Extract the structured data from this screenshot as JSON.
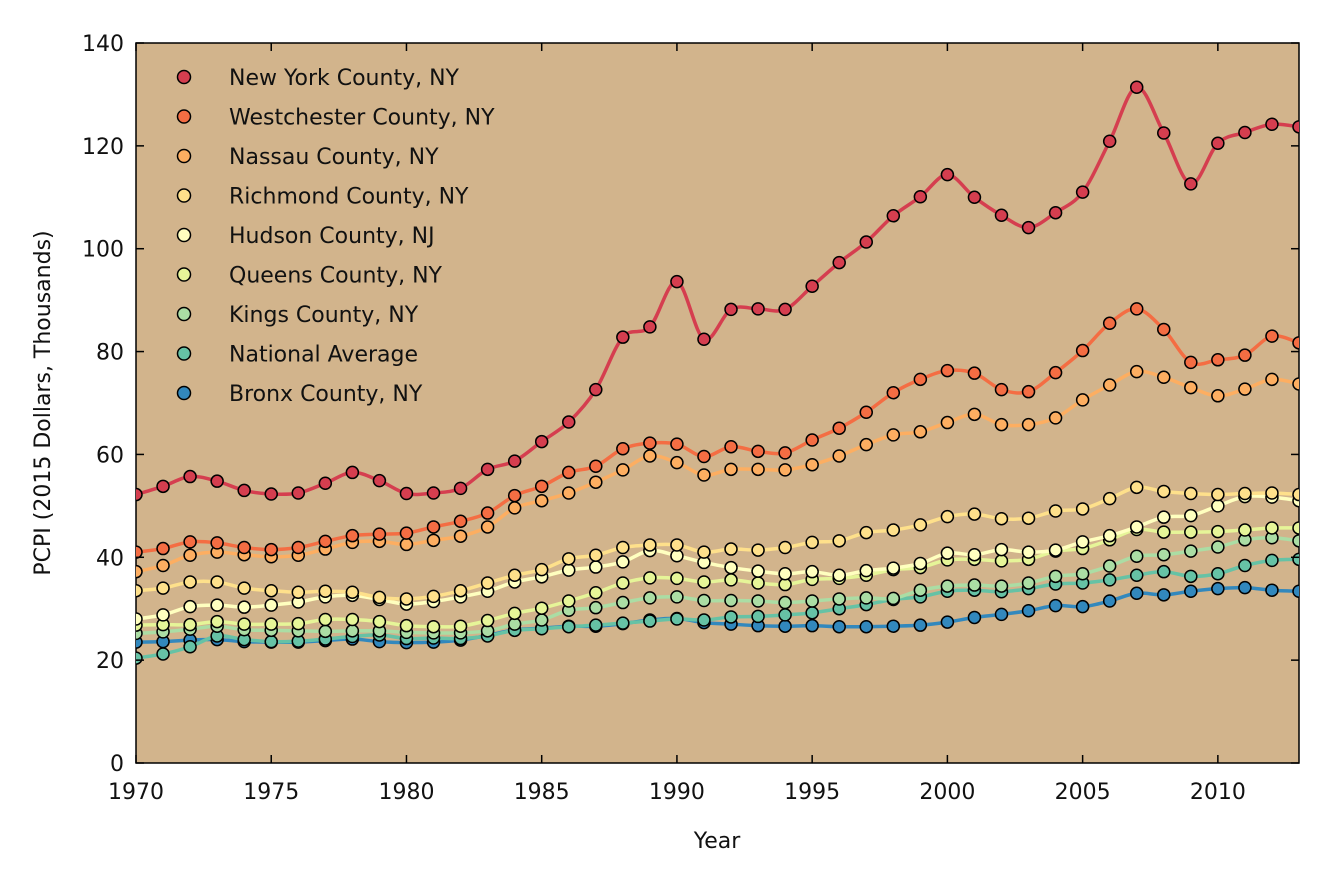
{
  "chart_data": {
    "type": "line",
    "xlabel": "Year",
    "ylabel": "PCPI (2015 Dollars, Thousands)",
    "xlim": [
      1970,
      2013
    ],
    "ylim": [
      0,
      140
    ],
    "x_ticks": [
      1970,
      1975,
      1980,
      1985,
      1990,
      1995,
      2000,
      2005,
      2010
    ],
    "y_ticks": [
      0,
      20,
      40,
      60,
      80,
      100,
      120,
      140
    ],
    "x_tick_labels": [
      "1970",
      "1975",
      "1980",
      "1985",
      "1990",
      "1995",
      "2000",
      "2005",
      "2010"
    ],
    "y_tick_labels": [
      "0",
      "20",
      "40",
      "60",
      "80",
      "100",
      "120",
      "140"
    ],
    "background_color": "#d2b48c",
    "grid": false,
    "legend_position": "top-left",
    "x": [
      1970,
      1971,
      1972,
      1973,
      1974,
      1975,
      1976,
      1977,
      1978,
      1979,
      1980,
      1981,
      1982,
      1983,
      1984,
      1985,
      1986,
      1987,
      1988,
      1989,
      1990,
      1991,
      1992,
      1993,
      1994,
      1995,
      1996,
      1997,
      1998,
      1999,
      2000,
      2001,
      2002,
      2003,
      2004,
      2005,
      2006,
      2007,
      2008,
      2009,
      2010,
      2011,
      2012,
      2013
    ],
    "series": [
      {
        "name": "New York County, NY",
        "color": "#d53e4f",
        "values": [
          52.2,
          53.8,
          55.7,
          54.8,
          53.0,
          52.3,
          52.5,
          54.4,
          56.5,
          54.9,
          52.4,
          52.5,
          53.4,
          57.1,
          58.7,
          62.5,
          66.3,
          72.6,
          82.8,
          84.8,
          93.6,
          82.4,
          88.2,
          88.3,
          88.2,
          92.7,
          97.3,
          101.3,
          106.4,
          110.1,
          114.4,
          110.0,
          106.5,
          104.1,
          107.0,
          111.0,
          120.9,
          131.4,
          122.5,
          112.6,
          120.5,
          122.6,
          124.2,
          123.7
        ]
      },
      {
        "name": "Westchester County, NY",
        "color": "#f46d43",
        "values": [
          41.0,
          41.7,
          43.0,
          42.8,
          41.9,
          41.5,
          41.9,
          43.1,
          44.2,
          44.5,
          44.7,
          45.9,
          47.0,
          48.6,
          52.0,
          53.8,
          56.5,
          57.7,
          61.1,
          62.2,
          62.0,
          59.6,
          61.5,
          60.6,
          60.3,
          62.8,
          65.1,
          68.2,
          72.0,
          74.6,
          76.3,
          75.8,
          72.6,
          72.2,
          75.9,
          80.2,
          85.5,
          88.3,
          84.3,
          77.9,
          78.4,
          79.3,
          83.0,
          81.7
        ]
      },
      {
        "name": "Nassau County, NY",
        "color": "#fdae61",
        "values": [
          37.2,
          38.4,
          40.4,
          41.0,
          40.5,
          40.1,
          40.4,
          41.6,
          42.9,
          43.1,
          42.5,
          43.3,
          44.1,
          45.9,
          49.6,
          51.0,
          52.5,
          54.6,
          57.0,
          59.7,
          58.4,
          56.0,
          57.1,
          57.1,
          57.0,
          58.0,
          59.7,
          61.9,
          63.8,
          64.4,
          66.2,
          67.8,
          65.8,
          65.8,
          67.1,
          70.6,
          73.5,
          76.1,
          75.0,
          73.0,
          71.4,
          72.7,
          74.6,
          73.7
        ]
      },
      {
        "name": "Richmond County, NY",
        "color": "#fee08b",
        "values": [
          33.5,
          34.0,
          35.2,
          35.2,
          34.0,
          33.5,
          33.2,
          33.4,
          33.2,
          32.2,
          31.9,
          32.4,
          33.5,
          35.0,
          36.5,
          37.6,
          39.7,
          40.4,
          41.9,
          42.4,
          42.4,
          41.0,
          41.6,
          41.4,
          41.9,
          42.9,
          43.2,
          44.8,
          45.3,
          46.3,
          47.9,
          48.4,
          47.5,
          47.6,
          49.0,
          49.4,
          51.4,
          53.6,
          52.8,
          52.4,
          52.2,
          52.4,
          52.5,
          52.2
        ]
      },
      {
        "name": "Hudson County, NJ",
        "color": "#ffffbf",
        "values": [
          28.0,
          28.8,
          30.4,
          30.7,
          30.3,
          30.7,
          31.3,
          32.3,
          32.6,
          31.8,
          30.9,
          31.4,
          32.3,
          33.4,
          35.2,
          36.2,
          37.5,
          38.1,
          39.1,
          41.3,
          40.3,
          39.0,
          38.0,
          37.3,
          36.8,
          37.2,
          36.5,
          37.4,
          37.9,
          38.8,
          40.8,
          40.5,
          41.5,
          41.0,
          41.4,
          43.0,
          44.2,
          45.9,
          47.8,
          48.1,
          50.0,
          51.8,
          51.7,
          51.0
        ]
      },
      {
        "name": "Queens County, NY",
        "color": "#e6f598",
        "values": [
          26.8,
          26.9,
          26.9,
          27.5,
          27.0,
          27.0,
          27.1,
          27.9,
          27.9,
          27.5,
          26.7,
          26.5,
          26.6,
          27.7,
          29.1,
          30.1,
          31.5,
          33.1,
          35.0,
          36.0,
          35.9,
          35.2,
          35.6,
          35.0,
          34.7,
          35.7,
          35.9,
          36.5,
          37.6,
          38.0,
          39.5,
          39.6,
          39.3,
          39.6,
          41.2,
          41.7,
          43.4,
          45.4,
          44.9,
          44.9,
          45.0,
          45.3,
          45.7,
          45.7
        ]
      },
      {
        "name": "Kings County, NY",
        "color": "#abdda4",
        "values": [
          25.2,
          25.5,
          26.0,
          26.6,
          25.9,
          25.8,
          25.7,
          25.6,
          25.7,
          25.7,
          25.4,
          25.3,
          25.3,
          25.7,
          27.0,
          27.8,
          29.7,
          30.2,
          31.2,
          32.1,
          32.3,
          31.6,
          31.6,
          31.5,
          31.2,
          31.5,
          31.9,
          32.1,
          32.0,
          33.6,
          34.4,
          34.6,
          34.4,
          35.0,
          36.3,
          36.8,
          38.3,
          40.2,
          40.5,
          41.2,
          42.0,
          43.4,
          43.8,
          43.2
        ]
      },
      {
        "name": "National Average",
        "color": "#66c2a5",
        "values": [
          20.4,
          21.2,
          22.6,
          24.7,
          24.0,
          23.6,
          23.7,
          24.1,
          24.6,
          24.9,
          24.2,
          24.3,
          24.2,
          24.7,
          25.8,
          26.1,
          26.5,
          26.8,
          27.2,
          27.6,
          28.0,
          27.8,
          28.4,
          28.5,
          28.8,
          29.2,
          30.0,
          30.8,
          31.8,
          32.3,
          33.4,
          33.6,
          33.3,
          33.9,
          34.8,
          35.0,
          35.6,
          36.5,
          37.2,
          36.3,
          36.8,
          38.4,
          39.4,
          39.6
        ]
      },
      {
        "name": "Bronx County, NY",
        "color": "#3288bd",
        "values": [
          23.5,
          23.6,
          23.9,
          24.0,
          23.6,
          23.5,
          23.5,
          23.8,
          24.1,
          23.6,
          23.4,
          23.5,
          23.9,
          24.8,
          25.9,
          26.2,
          26.6,
          26.6,
          27.1,
          27.8,
          28.1,
          27.3,
          27.0,
          26.7,
          26.6,
          26.7,
          26.5,
          26.5,
          26.6,
          26.8,
          27.4,
          28.3,
          28.9,
          29.6,
          30.6,
          30.4,
          31.5,
          33.0,
          32.7,
          33.4,
          33.9,
          34.1,
          33.6,
          33.4
        ]
      }
    ]
  }
}
